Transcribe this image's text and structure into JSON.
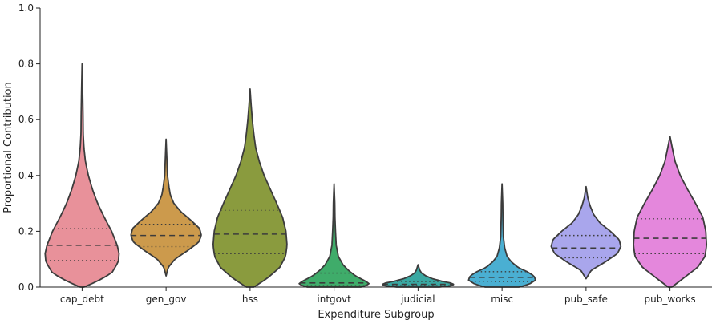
{
  "chart_data": {
    "type": "violin",
    "title": "",
    "xlabel": "Expenditure Subgroup",
    "ylabel": "Proportional Contribution",
    "ylim": [
      0,
      1.0
    ],
    "yticks": [
      "0.0",
      "0.2",
      "0.4",
      "0.6",
      "0.8",
      "1.0"
    ],
    "categories": [
      "cap_debt",
      "gen_gov",
      "hss",
      "intgovt",
      "judicial",
      "misc",
      "pub_safe",
      "pub_works"
    ],
    "colors": [
      "#e8919a",
      "#cc9a4c",
      "#8a9b3e",
      "#3fac6a",
      "#3aa8a2",
      "#4aafd2",
      "#a9a6ec",
      "#e487dc"
    ],
    "violins": [
      {
        "name": "cap_debt",
        "min": 0.0,
        "max": 0.8,
        "q1": 0.095,
        "median": 0.15,
        "q3": 0.21,
        "profile": [
          [
            0.0,
            0.05
          ],
          [
            0.02,
            0.4
          ],
          [
            0.05,
            0.8
          ],
          [
            0.09,
            0.98
          ],
          [
            0.12,
            1.0
          ],
          [
            0.15,
            0.95
          ],
          [
            0.2,
            0.8
          ],
          [
            0.25,
            0.6
          ],
          [
            0.3,
            0.42
          ],
          [
            0.35,
            0.28
          ],
          [
            0.4,
            0.17
          ],
          [
            0.45,
            0.09
          ],
          [
            0.5,
            0.05
          ],
          [
            0.55,
            0.03
          ],
          [
            0.62,
            0.025
          ],
          [
            0.7,
            0.015
          ],
          [
            0.8,
            0.0
          ]
        ]
      },
      {
        "name": "gen_gov",
        "min": 0.04,
        "max": 0.53,
        "q1": 0.145,
        "median": 0.185,
        "q3": 0.225,
        "profile": [
          [
            0.04,
            0.0
          ],
          [
            0.07,
            0.06
          ],
          [
            0.1,
            0.25
          ],
          [
            0.13,
            0.6
          ],
          [
            0.16,
            0.92
          ],
          [
            0.185,
            1.0
          ],
          [
            0.21,
            0.95
          ],
          [
            0.24,
            0.7
          ],
          [
            0.27,
            0.42
          ],
          [
            0.3,
            0.22
          ],
          [
            0.33,
            0.12
          ],
          [
            0.36,
            0.08
          ],
          [
            0.4,
            0.04
          ],
          [
            0.45,
            0.025
          ],
          [
            0.53,
            0.0
          ]
        ]
      },
      {
        "name": "hss",
        "min": 0.0,
        "max": 0.71,
        "q1": 0.12,
        "median": 0.19,
        "q3": 0.275,
        "profile": [
          [
            0.0,
            0.1
          ],
          [
            0.03,
            0.45
          ],
          [
            0.07,
            0.8
          ],
          [
            0.11,
            0.96
          ],
          [
            0.15,
            1.0
          ],
          [
            0.2,
            0.97
          ],
          [
            0.25,
            0.88
          ],
          [
            0.3,
            0.72
          ],
          [
            0.35,
            0.55
          ],
          [
            0.4,
            0.38
          ],
          [
            0.45,
            0.25
          ],
          [
            0.5,
            0.15
          ],
          [
            0.55,
            0.1
          ],
          [
            0.6,
            0.06
          ],
          [
            0.65,
            0.03
          ],
          [
            0.71,
            0.0
          ]
        ]
      },
      {
        "name": "intgovt",
        "min": 0.0,
        "max": 0.37,
        "q1": 0.005,
        "median": 0.015,
        "q3": 0.05,
        "profile": [
          [
            0.0,
            0.75
          ],
          [
            0.01,
            1.0
          ],
          [
            0.02,
            0.9
          ],
          [
            0.04,
            0.6
          ],
          [
            0.06,
            0.4
          ],
          [
            0.08,
            0.25
          ],
          [
            0.11,
            0.12
          ],
          [
            0.15,
            0.06
          ],
          [
            0.2,
            0.04
          ],
          [
            0.25,
            0.025
          ],
          [
            0.3,
            0.02
          ],
          [
            0.37,
            0.0
          ]
        ]
      },
      {
        "name": "judicial",
        "min": 0.0,
        "max": 0.08,
        "q1": 0.005,
        "median": 0.01,
        "q3": 0.02,
        "profile": [
          [
            0.0,
            0.6
          ],
          [
            0.005,
            0.95
          ],
          [
            0.01,
            1.0
          ],
          [
            0.015,
            0.9
          ],
          [
            0.02,
            0.7
          ],
          [
            0.03,
            0.4
          ],
          [
            0.04,
            0.22
          ],
          [
            0.05,
            0.1
          ],
          [
            0.06,
            0.05
          ],
          [
            0.08,
            0.0
          ]
        ]
      },
      {
        "name": "misc",
        "min": 0.0,
        "max": 0.37,
        "q1": 0.02,
        "median": 0.035,
        "q3": 0.055,
        "profile": [
          [
            0.0,
            0.5
          ],
          [
            0.01,
            0.8
          ],
          [
            0.025,
            1.0
          ],
          [
            0.04,
            0.95
          ],
          [
            0.055,
            0.75
          ],
          [
            0.07,
            0.48
          ],
          [
            0.09,
            0.28
          ],
          [
            0.11,
            0.15
          ],
          [
            0.14,
            0.08
          ],
          [
            0.18,
            0.04
          ],
          [
            0.25,
            0.025
          ],
          [
            0.3,
            0.02
          ],
          [
            0.37,
            0.0
          ]
        ]
      },
      {
        "name": "pub_safe",
        "min": 0.03,
        "max": 0.36,
        "q1": 0.105,
        "median": 0.14,
        "q3": 0.185,
        "profile": [
          [
            0.03,
            0.0
          ],
          [
            0.06,
            0.15
          ],
          [
            0.09,
            0.55
          ],
          [
            0.12,
            0.9
          ],
          [
            0.145,
            1.0
          ],
          [
            0.17,
            0.95
          ],
          [
            0.2,
            0.7
          ],
          [
            0.23,
            0.4
          ],
          [
            0.26,
            0.22
          ],
          [
            0.29,
            0.12
          ],
          [
            0.32,
            0.05
          ],
          [
            0.36,
            0.0
          ]
        ]
      },
      {
        "name": "pub_works",
        "min": 0.0,
        "max": 0.54,
        "q1": 0.12,
        "median": 0.175,
        "q3": 0.245,
        "profile": [
          [
            0.0,
            0.05
          ],
          [
            0.03,
            0.35
          ],
          [
            0.07,
            0.75
          ],
          [
            0.11,
            0.96
          ],
          [
            0.15,
            1.0
          ],
          [
            0.2,
            0.98
          ],
          [
            0.25,
            0.9
          ],
          [
            0.3,
            0.7
          ],
          [
            0.35,
            0.48
          ],
          [
            0.4,
            0.28
          ],
          [
            0.45,
            0.14
          ],
          [
            0.5,
            0.06
          ],
          [
            0.54,
            0.0
          ]
        ]
      }
    ],
    "widths": [
      0.88,
      0.84,
      0.88,
      0.85,
      0.85,
      0.8,
      0.83,
      0.87
    ],
    "grid": false,
    "legend": "none"
  }
}
